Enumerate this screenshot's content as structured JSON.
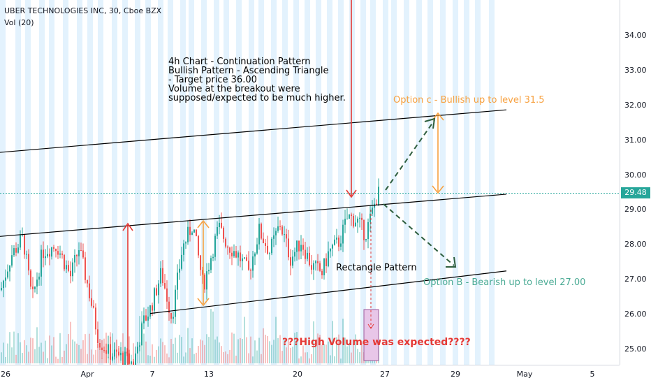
{
  "header": {
    "title": "UBER TECHNOLOGIES INC, 30, Cboe BZX",
    "indicator": "Vol (20)"
  },
  "colors": {
    "up": "#26a69a",
    "down": "#ef5350",
    "session_band": "#e3f2fd",
    "trendline": "#000000",
    "arrow_red": "#e53935",
    "arrow_orange": "#f7a140",
    "projection": "#2e5e3e",
    "last_price_line": "#26a69a",
    "volume_box": "#e8c6e8"
  },
  "chart_data": {
    "type": "candlestick",
    "symbol": "UBER TECHNOLOGIES INC",
    "interval": "30",
    "exchange": "Cboe BZX",
    "price_axis": {
      "ticks": [
        "34.00",
        "33.00",
        "32.00",
        "31.00",
        "30.00",
        "29.00",
        "28.00",
        "27.00",
        "26.00",
        "25.00"
      ],
      "ylim": [
        24.6,
        35.1
      ]
    },
    "time_axis": {
      "ticks": [
        "26",
        "Apr",
        "7",
        "13",
        "20",
        "27",
        "29",
        "May",
        "5"
      ]
    },
    "last_price": "29.48",
    "price_path": [
      [
        0,
        26.7
      ],
      [
        15,
        27.7
      ],
      [
        32,
        28.2
      ],
      [
        45,
        26.4
      ],
      [
        60,
        27.8
      ],
      [
        80,
        28.0
      ],
      [
        100,
        27.1
      ],
      [
        112,
        27.9
      ],
      [
        125,
        26.8
      ],
      [
        140,
        25.3
      ],
      [
        155,
        24.9
      ],
      [
        170,
        24.8
      ],
      [
        190,
        24.6
      ],
      [
        205,
        25.8
      ],
      [
        215,
        26.2
      ],
      [
        230,
        27.2
      ],
      [
        245,
        25.9
      ],
      [
        260,
        27.9
      ],
      [
        275,
        28.6
      ],
      [
        290,
        26.8
      ],
      [
        300,
        27.6
      ],
      [
        312,
        28.5
      ],
      [
        325,
        28.0
      ],
      [
        340,
        27.7
      ],
      [
        355,
        27.2
      ],
      [
        370,
        28.4
      ],
      [
        385,
        27.8
      ],
      [
        400,
        28.6
      ],
      [
        415,
        27.6
      ],
      [
        430,
        28.1
      ],
      [
        445,
        27.4
      ],
      [
        460,
        27.2
      ],
      [
        470,
        27.8
      ],
      [
        485,
        28.1
      ],
      [
        497,
        28.8
      ],
      [
        510,
        28.7
      ],
      [
        522,
        28.3
      ],
      [
        530,
        28.8
      ],
      [
        537,
        29.3
      ],
      [
        542,
        29.5
      ]
    ],
    "trendlines": [
      {
        "name": "upper-channel-line",
        "from": [
          0,
          30.65
        ],
        "to": [
          725,
          31.87
        ]
      },
      {
        "name": "mid-resistance-line",
        "from": [
          0,
          28.24
        ],
        "to": [
          725,
          29.45
        ]
      },
      {
        "name": "lower-support-line",
        "from": [
          215,
          26.03
        ],
        "to": [
          725,
          27.25
        ]
      }
    ],
    "annotations": {
      "note_lines": [
        "4h Chart - Continuation Pattern",
        "Bullish Pattern - Ascending Triangle",
        "- Target price 36.00",
        "Volume at the breakout were",
        "supposed/expected to be much higher."
      ],
      "option_c": "Option c - Bullish up to level 31.5",
      "option_b": "Option B - Bearish up to level 27.00",
      "rectangle_pattern": "Rectangle Pattern",
      "volume_note": "???High Volume was expected????"
    }
  }
}
